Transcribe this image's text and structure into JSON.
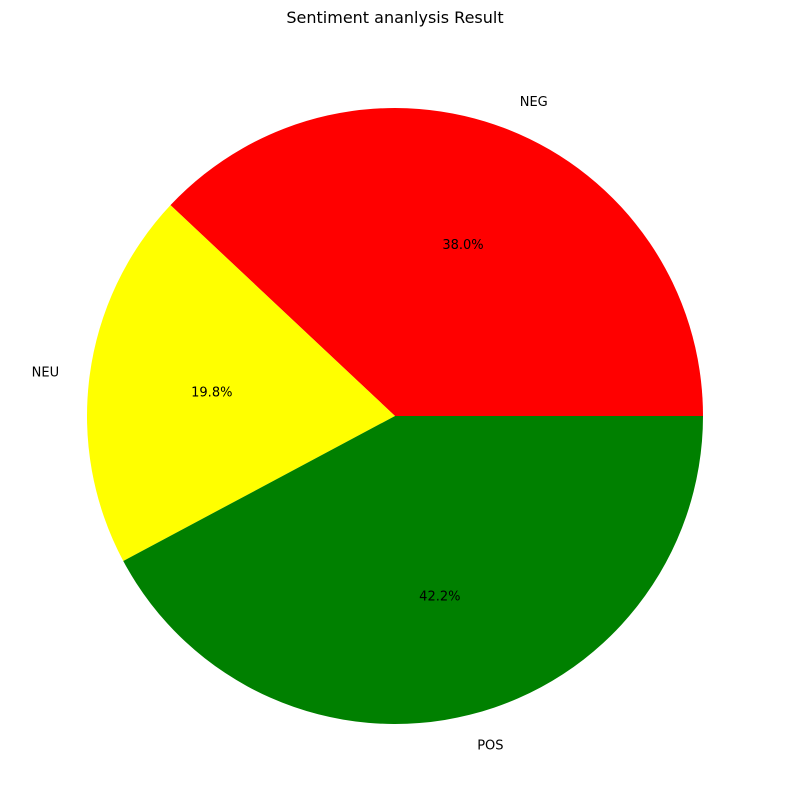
{
  "chart_data": {
    "type": "pie",
    "title": "Sentiment ananlysis Result",
    "categories": [
      "NEG",
      "NEU",
      "POS"
    ],
    "values": [
      38.0,
      19.8,
      42.2
    ],
    "value_labels": [
      "38.0%",
      "19.8%",
      "42.2%"
    ],
    "colors": [
      "#ff0000",
      "#ffff00",
      "#008000"
    ],
    "start_angle_deg": 0,
    "direction": "counterclockwise",
    "legend": "none"
  }
}
